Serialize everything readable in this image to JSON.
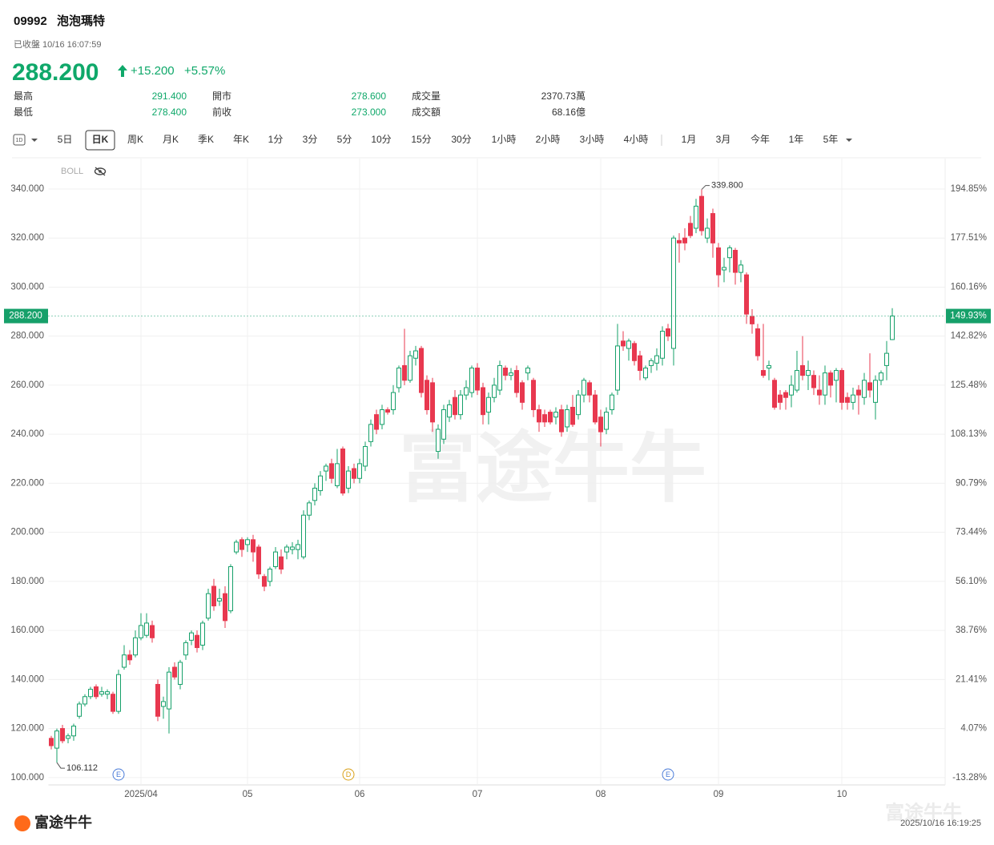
{
  "header": {
    "code": "09992",
    "name": "泡泡瑪特",
    "status": "已收盤 10/16 16:07:59",
    "price": "288.200",
    "change": "+15.200",
    "change_pct": "+5.57%"
  },
  "stats": [
    [
      "最高",
      "291.400",
      "開市",
      "278.600",
      "成交量",
      "2370.73萬"
    ],
    [
      "最低",
      "278.400",
      "前收",
      "273.000",
      "成交額",
      "68.16億"
    ]
  ],
  "toolbar": {
    "period_icon": "1D",
    "buttons": [
      "5日",
      "日K",
      "周K",
      "月K",
      "季K",
      "年K",
      "1分",
      "3分",
      "5分",
      "10分",
      "15分",
      "30分",
      "1小時",
      "2小時",
      "3小時",
      "4小時",
      "1月",
      "3月",
      "今年",
      "1年",
      "5年"
    ],
    "selected": "日K"
  },
  "watermark": "富途牛牛",
  "footer": {
    "brand": "富途牛牛",
    "timestamp": "2025/10/16 16:19:25"
  },
  "chart_data": {
    "type": "candlestick",
    "indicator": "BOLL",
    "up_color": "#16a06a",
    "down_color": "#e8384f",
    "grid": true,
    "categories": [
      null,
      null,
      null,
      null,
      null,
      null,
      null,
      null,
      null,
      null,
      null,
      null,
      null,
      null,
      null,
      null,
      "2025/04",
      null,
      null,
      null,
      null,
      null,
      null,
      null,
      null,
      null,
      null,
      null,
      null,
      null,
      null,
      null,
      null,
      null,
      null,
      "05",
      null,
      null,
      null,
      null,
      null,
      null,
      null,
      null,
      null,
      null,
      null,
      null,
      null,
      null,
      null,
      null,
      null,
      null,
      null,
      "06",
      null,
      null,
      null,
      null,
      null,
      null,
      null,
      null,
      null,
      null,
      null,
      null,
      null,
      null,
      null,
      null,
      null,
      null,
      null,
      null,
      "07",
      null,
      null,
      null,
      null,
      null,
      null,
      null,
      null,
      null,
      null,
      null,
      null,
      null,
      null,
      null,
      null,
      null,
      null,
      null,
      null,
      null,
      "08",
      null,
      null,
      null,
      null,
      null,
      null,
      null,
      null,
      null,
      null,
      null,
      null,
      null,
      null,
      null,
      null,
      null,
      null,
      null,
      null,
      "09",
      null,
      null,
      null,
      null,
      null,
      null,
      null,
      null,
      null,
      null,
      null,
      null,
      null,
      null,
      null,
      null,
      null,
      null,
      null,
      null,
      null,
      "10",
      null,
      null,
      null,
      null,
      null,
      null,
      null,
      null,
      null
    ],
    "ohlc": [
      [
        116,
        117,
        111.5,
        113
      ],
      [
        112,
        120,
        106.112,
        119
      ],
      [
        120,
        121.5,
        114,
        115
      ],
      [
        116,
        118,
        114,
        117
      ],
      [
        117,
        122,
        115,
        121
      ],
      [
        125,
        131,
        124,
        130
      ],
      [
        130,
        134,
        129,
        133
      ],
      [
        133,
        137,
        132,
        136
      ],
      [
        137,
        138,
        132,
        133
      ],
      [
        134,
        137,
        133,
        135
      ],
      [
        134,
        136,
        132,
        135
      ],
      [
        134,
        135,
        126,
        127
      ],
      [
        127,
        144,
        126,
        142
      ],
      [
        145,
        154,
        144,
        150
      ],
      [
        150,
        152,
        146,
        148
      ],
      [
        150,
        160,
        149,
        157
      ],
      [
        157,
        167,
        156,
        162
      ],
      [
        158,
        167,
        157,
        163
      ],
      [
        162,
        164,
        155,
        157
      ],
      [
        138,
        140,
        123,
        125
      ],
      [
        129,
        133,
        124,
        131
      ],
      [
        128,
        145,
        118,
        143
      ],
      [
        145,
        147,
        140,
        141
      ],
      [
        138,
        148,
        136,
        147
      ],
      [
        150,
        156,
        148,
        155
      ],
      [
        156,
        160,
        154,
        159
      ],
      [
        158,
        160,
        151,
        153
      ],
      [
        154,
        164,
        152,
        163
      ],
      [
        165,
        177,
        164,
        175
      ],
      [
        178,
        181,
        168,
        170
      ],
      [
        172,
        177,
        170,
        173
      ],
      [
        175,
        178,
        161,
        164
      ],
      [
        168,
        187,
        167,
        186
      ],
      [
        192,
        197,
        191,
        196
      ],
      [
        197,
        198,
        190,
        193
      ],
      [
        195,
        198,
        192,
        197
      ],
      [
        197,
        199,
        188,
        192
      ],
      [
        194,
        195,
        181,
        183
      ],
      [
        182,
        183,
        176,
        178
      ],
      [
        180,
        186,
        178,
        185
      ],
      [
        186,
        194,
        185,
        192
      ],
      [
        190,
        193,
        183,
        185
      ],
      [
        192,
        195,
        189,
        194
      ],
      [
        193,
        196,
        191,
        194
      ],
      [
        193,
        197,
        189,
        195
      ],
      [
        190,
        209,
        189,
        207
      ],
      [
        207,
        213,
        205,
        212
      ],
      [
        213,
        220,
        211,
        218
      ],
      [
        217,
        225,
        215,
        223
      ],
      [
        225,
        228,
        221,
        227
      ],
      [
        228,
        230,
        220,
        222
      ],
      [
        219,
        234,
        218,
        228
      ],
      [
        234,
        235,
        215,
        216
      ],
      [
        218,
        227,
        216,
        225
      ],
      [
        226,
        228,
        220,
        222
      ],
      [
        222,
        230,
        220,
        228
      ],
      [
        227,
        237,
        225,
        235
      ],
      [
        237,
        246,
        235,
        244
      ],
      [
        248,
        250,
        240,
        242
      ],
      [
        244,
        252,
        242,
        250
      ],
      [
        250,
        251,
        248,
        249
      ],
      [
        250,
        260,
        248,
        257
      ],
      [
        259,
        268,
        257,
        267
      ],
      [
        268,
        283,
        260,
        262
      ],
      [
        262,
        274,
        261,
        272
      ],
      [
        271,
        276,
        268,
        274
      ],
      [
        275,
        276,
        255,
        257
      ],
      [
        262,
        264,
        248,
        250
      ],
      [
        261,
        263,
        241,
        245
      ],
      [
        233,
        244,
        230,
        242
      ],
      [
        238,
        252,
        236,
        250
      ],
      [
        247,
        254,
        245,
        252
      ],
      [
        255,
        258,
        246,
        248
      ],
      [
        248,
        258,
        246,
        256
      ],
      [
        256,
        262,
        254,
        259
      ],
      [
        257,
        268,
        255,
        267
      ],
      [
        267,
        269,
        256,
        258
      ],
      [
        259,
        261,
        244,
        248
      ],
      [
        249,
        257,
        244,
        255
      ],
      [
        255,
        263,
        253,
        260
      ],
      [
        258,
        270,
        256,
        268
      ],
      [
        267,
        268,
        262,
        264
      ],
      [
        264,
        267,
        262,
        265
      ],
      [
        266,
        268,
        255,
        257
      ],
      [
        261,
        262,
        250,
        253
      ],
      [
        265,
        268,
        262,
        267
      ],
      [
        262,
        263,
        247,
        250
      ],
      [
        250,
        252,
        241,
        245
      ],
      [
        248,
        250,
        243,
        245
      ],
      [
        249,
        250,
        244,
        245
      ],
      [
        247,
        251,
        244,
        249
      ],
      [
        250,
        252,
        239,
        241
      ],
      [
        243,
        252,
        241,
        250
      ],
      [
        251,
        256,
        243,
        244
      ],
      [
        248,
        258,
        246,
        256
      ],
      [
        256,
        263,
        253,
        262
      ],
      [
        261,
        262,
        253,
        256
      ],
      [
        256,
        258,
        244,
        245
      ],
      [
        247,
        250,
        235,
        241
      ],
      [
        242,
        251,
        240,
        249
      ],
      [
        250,
        257,
        248,
        256
      ],
      [
        258,
        285,
        256,
        276
      ],
      [
        278,
        282,
        274,
        276
      ],
      [
        275,
        279,
        270,
        278
      ],
      [
        277,
        278,
        268,
        270
      ],
      [
        272,
        274,
        262,
        266
      ],
      [
        263,
        268,
        262,
        267
      ],
      [
        268,
        271,
        265,
        270
      ],
      [
        269,
        275,
        266,
        272
      ],
      [
        271,
        284,
        268,
        282
      ],
      [
        283,
        285,
        278,
        280
      ],
      [
        275,
        321,
        268,
        320
      ],
      [
        319,
        322,
        310,
        318
      ],
      [
        320,
        324,
        315,
        318
      ],
      [
        326,
        329,
        320,
        321
      ],
      [
        324,
        336,
        322,
        333
      ],
      [
        337,
        339.8,
        321,
        323
      ],
      [
        320,
        328,
        318,
        324
      ],
      [
        330,
        332,
        312,
        318
      ],
      [
        316,
        318,
        300,
        305
      ],
      [
        307,
        312,
        302,
        308
      ],
      [
        312,
        317,
        306,
        316
      ],
      [
        315,
        316,
        301,
        306
      ],
      [
        306,
        311,
        302,
        309
      ],
      [
        305,
        306,
        285,
        289
      ],
      [
        288,
        291,
        281,
        285
      ],
      [
        283,
        285,
        270,
        272
      ],
      [
        266,
        285,
        263,
        264
      ],
      [
        267,
        270,
        262,
        268
      ],
      [
        262,
        263,
        250,
        251
      ],
      [
        256,
        258,
        250,
        253
      ],
      [
        257,
        258,
        250,
        255
      ],
      [
        256,
        264,
        251,
        260
      ],
      [
        258,
        274,
        257,
        266
      ],
      [
        268,
        280,
        262,
        264
      ],
      [
        264,
        270,
        258,
        266
      ],
      [
        264,
        266,
        256,
        259
      ],
      [
        258,
        264,
        252,
        256
      ],
      [
        256,
        268,
        252,
        265
      ],
      [
        265,
        266,
        255,
        260
      ],
      [
        262,
        267,
        253,
        266
      ],
      [
        266,
        267,
        250,
        253
      ],
      [
        255,
        257,
        250,
        253
      ],
      [
        253,
        259,
        250,
        256
      ],
      [
        258,
        260,
        248,
        256
      ],
      [
        255,
        265,
        252,
        262
      ],
      [
        261,
        273,
        255,
        258
      ],
      [
        253,
        264,
        246,
        262
      ],
      [
        262,
        266,
        260,
        265
      ],
      [
        268,
        278,
        262,
        273
      ],
      [
        278.6,
        291.4,
        278.4,
        288.2
      ]
    ],
    "ylim": [
      97,
      352.4
    ],
    "yticks": [
      {
        "value": 100,
        "label": "100.000"
      },
      {
        "value": 120,
        "label": "120.000"
      },
      {
        "value": 140,
        "label": "140.000"
      },
      {
        "value": 160,
        "label": "160.000"
      },
      {
        "value": 180,
        "label": "180.000"
      },
      {
        "value": 200,
        "label": "200.000"
      },
      {
        "value": 220,
        "label": "220.000"
      },
      {
        "value": 240,
        "label": "240.000"
      },
      {
        "value": 260,
        "label": "260.000"
      },
      {
        "value": 280,
        "label": "280.000"
      },
      {
        "value": 300,
        "label": "300.000"
      },
      {
        "value": 320,
        "label": "320.000"
      },
      {
        "value": 340,
        "label": "340.000"
      }
    ],
    "y2lim": [
      -15.88,
      205.6
    ],
    "y2ticks": [
      {
        "value": -13.28,
        "label": "-13.28%"
      },
      {
        "value": 4.07,
        "label": "4.07%"
      },
      {
        "value": 21.41,
        "label": "21.41%"
      },
      {
        "value": 38.76,
        "label": "38.76%"
      },
      {
        "value": 56.1,
        "label": "56.10%"
      },
      {
        "value": 73.44,
        "label": "73.44%"
      },
      {
        "value": 90.79,
        "label": "90.79%"
      },
      {
        "value": 108.13,
        "label": "108.13%"
      },
      {
        "value": 125.48,
        "label": "125.48%"
      },
      {
        "value": 142.82,
        "label": "142.82%"
      },
      {
        "value": 160.16,
        "label": "160.16%"
      },
      {
        "value": 177.51,
        "label": "177.51%"
      },
      {
        "value": 194.85,
        "label": "194.85%"
      }
    ],
    "last_price": {
      "value": 288.2,
      "label": "288.200",
      "pct_value": 149.93,
      "pct_label": "149.93%"
    },
    "annotations": [
      {
        "label": "339.800",
        "value": 339.8,
        "category": 116
      },
      {
        "label": "106.112",
        "value": 106.112,
        "category": 1
      }
    ],
    "events": [
      {
        "label": "E",
        "category": 12,
        "color": "#4a7bd8"
      },
      {
        "label": "D",
        "category": 53,
        "color": "#d9a017"
      },
      {
        "label": "E",
        "category": 110,
        "color": "#4a7bd8"
      }
    ]
  }
}
